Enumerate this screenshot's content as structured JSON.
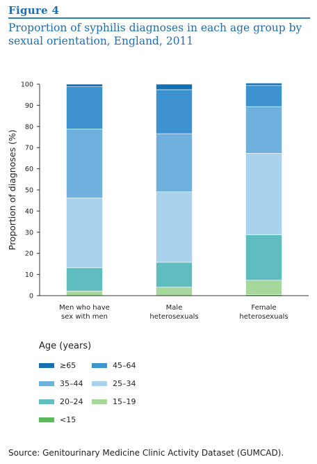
{
  "figure_label": "Figure 4",
  "title": "Proportion of syphilis diagnoses in each age group by sexual orientation, England, 2011",
  "source": "Source: Genitourinary Medicine Clinic Activity Dataset (GUMCAD).",
  "legend_title": "Age (years)",
  "chart_data": {
    "type": "bar",
    "stacked": true,
    "ylabel": "Proportion of diagnoses (%)",
    "ylim": [
      0,
      100
    ],
    "yticks": [
      "0",
      "10",
      "20",
      "30",
      "40",
      "50",
      "60",
      "70",
      "80",
      "90",
      "100"
    ],
    "categories": [
      [
        "Men who have",
        "sex with men"
      ],
      [
        "Male",
        "heterosexuals"
      ],
      [
        "Female",
        "heterosexuals"
      ]
    ],
    "series": [
      {
        "name": "<15",
        "color": "#5cb85c",
        "values": [
          0.0,
          0.0,
          0.5
        ]
      },
      {
        "name": "15–19",
        "color": "#a6d89c",
        "values": [
          2.2,
          4.0,
          6.8
        ]
      },
      {
        "name": "20–24",
        "color": "#5fbcbf",
        "values": [
          11.0,
          11.8,
          21.5
        ]
      },
      {
        "name": "25–34",
        "color": "#a9d3ec",
        "values": [
          33.0,
          33.3,
          38.5
        ]
      },
      {
        "name": "35–44",
        "color": "#6fb0dc",
        "values": [
          32.6,
          27.5,
          22.1
        ]
      },
      {
        "name": "45–64",
        "color": "#3d92d0",
        "values": [
          20.0,
          20.8,
          10.0
        ]
      },
      {
        "name": "≥65",
        "color": "#1570b3",
        "values": [
          1.2,
          2.6,
          1.1
        ]
      }
    ],
    "legend_order": [
      "≥65",
      "45–64",
      "35–44",
      "25–34",
      "20–24",
      "15–19",
      "<15"
    ]
  }
}
